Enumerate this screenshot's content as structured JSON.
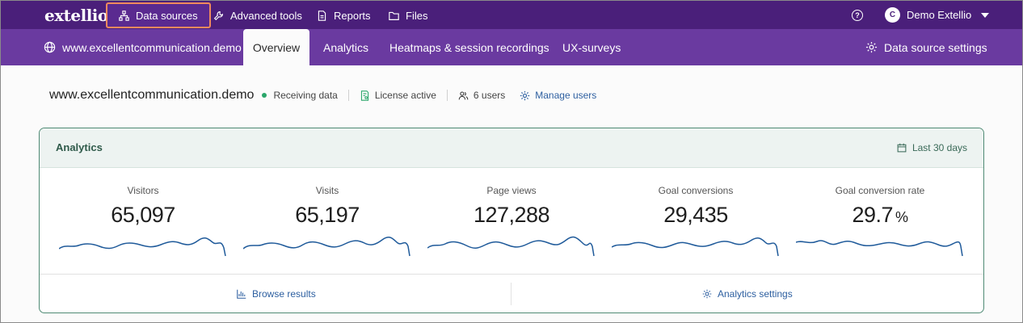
{
  "app": {
    "logo": "extellio"
  },
  "topnav": {
    "items": [
      {
        "label": "Data sources",
        "icon": "sitemap-icon"
      },
      {
        "label": "Advanced tools",
        "icon": "wrench-icon"
      },
      {
        "label": "Reports",
        "icon": "document-icon"
      },
      {
        "label": "Files",
        "icon": "folder-icon"
      }
    ],
    "help": "?",
    "user": {
      "initial": "C",
      "name": "Demo Extellio"
    }
  },
  "subnav": {
    "site": "www.excellentcommunication.demo",
    "tabs": [
      "Overview",
      "Analytics",
      "Heatmaps & session recordings",
      "UX-surveys"
    ],
    "settings": "Data source settings"
  },
  "site_info": {
    "name": "www.excellentcommunication.demo",
    "status": "Receiving data",
    "license": "License active",
    "users": "6 users",
    "manage": "Manage users"
  },
  "analytics_card": {
    "title": "Analytics",
    "range": "Last 30 days",
    "metrics": [
      {
        "label": "Visitors",
        "value": "65,097",
        "unit": ""
      },
      {
        "label": "Visits",
        "value": "65,197",
        "unit": ""
      },
      {
        "label": "Page views",
        "value": "127,288",
        "unit": ""
      },
      {
        "label": "Goal conversions",
        "value": "29,435",
        "unit": ""
      },
      {
        "label": "Goal conversion rate",
        "value": "29.7",
        "unit": "%"
      }
    ],
    "browse": "Browse results",
    "settings": "Analytics settings"
  },
  "colors": {
    "topbar": "#4a1f7a",
    "subbar": "#6a3aa0",
    "highlight_border": "#f08a5d",
    "card_border": "#4f8a74",
    "sparkline": "#1f5a9a",
    "status_dot": "#2aa66a",
    "link": "#2d5fa0"
  }
}
